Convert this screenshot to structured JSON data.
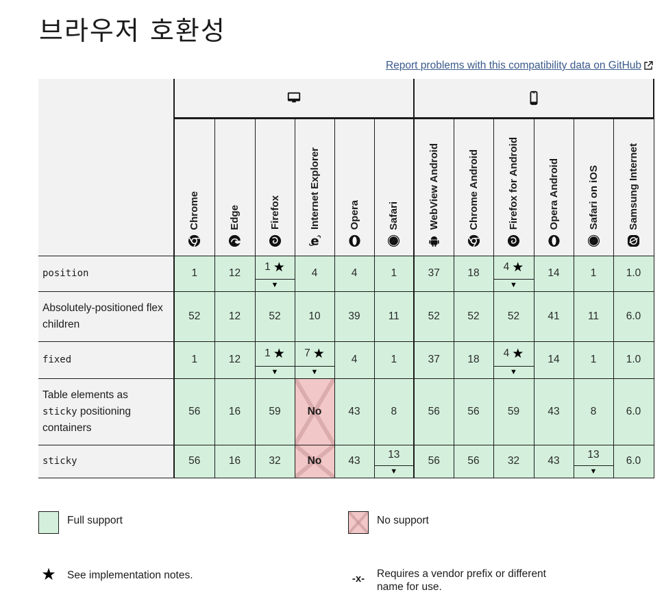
{
  "page": {
    "title": "브라우저 호환성",
    "report_link": "Report problems with this compatibility data on GitHub"
  },
  "platforms": [
    {
      "name": "desktop",
      "icon": "desktop-icon",
      "span": 6
    },
    {
      "name": "mobile",
      "icon": "mobile-icon",
      "span": 6
    }
  ],
  "browsers": [
    {
      "name": "Chrome",
      "icon": "chrome-icon"
    },
    {
      "name": "Edge",
      "icon": "edge-icon"
    },
    {
      "name": "Firefox",
      "icon": "firefox-icon"
    },
    {
      "name": "Internet Explorer",
      "icon": "ie-icon"
    },
    {
      "name": "Opera",
      "icon": "opera-icon"
    },
    {
      "name": "Safari",
      "icon": "safari-icon"
    },
    {
      "name": "WebView Android",
      "icon": "android-icon"
    },
    {
      "name": "Chrome Android",
      "icon": "chrome-icon"
    },
    {
      "name": "Firefox for Android",
      "icon": "firefox-icon"
    },
    {
      "name": "Opera Android",
      "icon": "opera-icon"
    },
    {
      "name": "Safari on iOS",
      "icon": "safari-icon"
    },
    {
      "name": "Samsung Internet",
      "icon": "samsung-internet-icon"
    }
  ],
  "features": [
    {
      "name": "position",
      "code": true,
      "cells": [
        {
          "v": "1"
        },
        {
          "v": "12"
        },
        {
          "v": "1",
          "note": true,
          "drop": true
        },
        {
          "v": "4"
        },
        {
          "v": "4"
        },
        {
          "v": "1"
        },
        {
          "v": "37"
        },
        {
          "v": "18"
        },
        {
          "v": "4",
          "note": true,
          "drop": true
        },
        {
          "v": "14"
        },
        {
          "v": "1"
        },
        {
          "v": "1.0"
        }
      ]
    },
    {
      "name": "Absolutely-positioned flex children",
      "code": false,
      "cells": [
        {
          "v": "52"
        },
        {
          "v": "12"
        },
        {
          "v": "52"
        },
        {
          "v": "10"
        },
        {
          "v": "39"
        },
        {
          "v": "11"
        },
        {
          "v": "52"
        },
        {
          "v": "52"
        },
        {
          "v": "52"
        },
        {
          "v": "41"
        },
        {
          "v": "11"
        },
        {
          "v": "6.0"
        }
      ]
    },
    {
      "name": "fixed",
      "code": true,
      "cells": [
        {
          "v": "1"
        },
        {
          "v": "12"
        },
        {
          "v": "1",
          "note": true,
          "drop": true
        },
        {
          "v": "7",
          "note": true,
          "drop": true
        },
        {
          "v": "4"
        },
        {
          "v": "1"
        },
        {
          "v": "37"
        },
        {
          "v": "18"
        },
        {
          "v": "4",
          "note": true,
          "drop": true
        },
        {
          "v": "14"
        },
        {
          "v": "1"
        },
        {
          "v": "1.0"
        }
      ]
    },
    {
      "name_parts": [
        "Table elements as",
        "sticky",
        "positioning containers"
      ],
      "code": false,
      "cells": [
        {
          "v": "56"
        },
        {
          "v": "16"
        },
        {
          "v": "59"
        },
        {
          "v": "No",
          "no": true
        },
        {
          "v": "43"
        },
        {
          "v": "8"
        },
        {
          "v": "56"
        },
        {
          "v": "56"
        },
        {
          "v": "59"
        },
        {
          "v": "43"
        },
        {
          "v": "8"
        },
        {
          "v": "6.0"
        }
      ]
    },
    {
      "name": "sticky",
      "code": true,
      "cells": [
        {
          "v": "56"
        },
        {
          "v": "16"
        },
        {
          "v": "32"
        },
        {
          "v": "No",
          "no": true
        },
        {
          "v": "43"
        },
        {
          "v": "13",
          "drop": true
        },
        {
          "v": "56"
        },
        {
          "v": "56"
        },
        {
          "v": "32"
        },
        {
          "v": "43"
        },
        {
          "v": "13",
          "drop": true
        },
        {
          "v": "6.0"
        }
      ]
    }
  ],
  "legend": {
    "full_support": "Full support",
    "no_support": "No support",
    "notes": "See implementation notes.",
    "prefix_symbol": "-x-",
    "prefix_line1": "Requires a vendor prefix or different",
    "prefix_line2": "name for use."
  },
  "colors": {
    "full_support": "#d4f0dc",
    "no_support": "#f2c7c7",
    "header_bg": "#f2f2f2",
    "link": "#3a5a8a"
  }
}
